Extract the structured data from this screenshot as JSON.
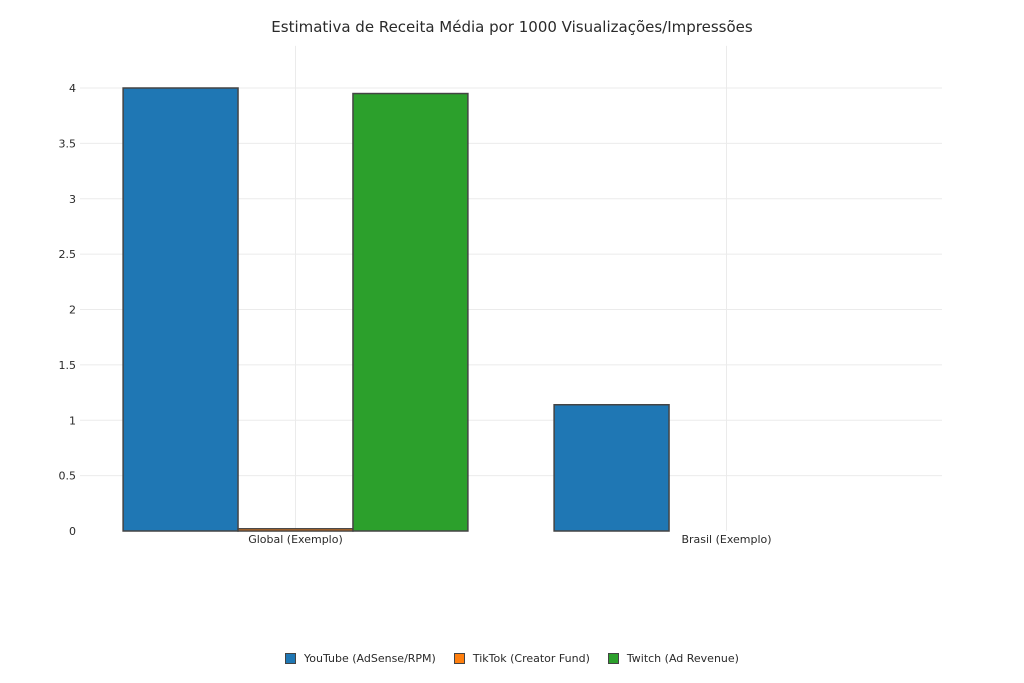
{
  "chart_data": {
    "type": "bar",
    "title": "Estimativa de Receita Média por 1000 Visualizações/Impressões",
    "xlabel": "",
    "ylabel": "",
    "categories": [
      "Global (Exemplo)",
      "Brasil (Exemplo)"
    ],
    "series": [
      {
        "name": "YouTube (AdSense/RPM)",
        "values": [
          4.0,
          1.14
        ],
        "color": "#1f77b4"
      },
      {
        "name": "TikTok (Creator Fund)",
        "values": [
          0.02,
          null
        ],
        "color": "#ff7f0e"
      },
      {
        "name": "Twitch (Ad Revenue)",
        "values": [
          3.95,
          null
        ],
        "color": "#2ca02c"
      }
    ],
    "ylim": [
      0,
      4.2
    ],
    "yticks": [
      "0",
      "0.5",
      "1",
      "1.5",
      "2",
      "2.5",
      "3",
      "3.5",
      "4"
    ],
    "grid": true,
    "legend_position": "bottom-center"
  }
}
